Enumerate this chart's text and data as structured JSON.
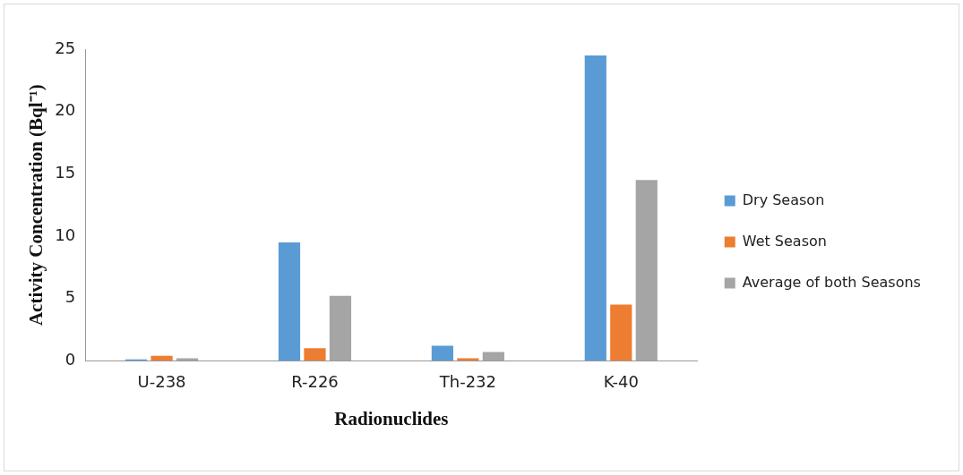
{
  "chart_data": {
    "type": "bar",
    "xlabel": "Radionuclides",
    "ylabel": "Activity Concentration (Bql⁻¹)",
    "categories": [
      "U-238",
      "R-226",
      "Th-232",
      "K-40"
    ],
    "series": [
      {
        "name": "Dry Season",
        "color": "#5b9bd5",
        "values": [
          0.1,
          9.5,
          1.2,
          24.5
        ]
      },
      {
        "name": "Wet Season",
        "color": "#ed7d31",
        "values": [
          0.4,
          1.0,
          0.2,
          4.5
        ]
      },
      {
        "name": "Average of both Seasons",
        "color": "#a5a5a5",
        "values": [
          0.2,
          5.2,
          0.7,
          14.5
        ]
      }
    ],
    "ylim": [
      0,
      25
    ],
    "yticks": [
      0,
      5,
      10,
      15,
      20,
      25
    ],
    "grid": false,
    "legend": "right"
  }
}
